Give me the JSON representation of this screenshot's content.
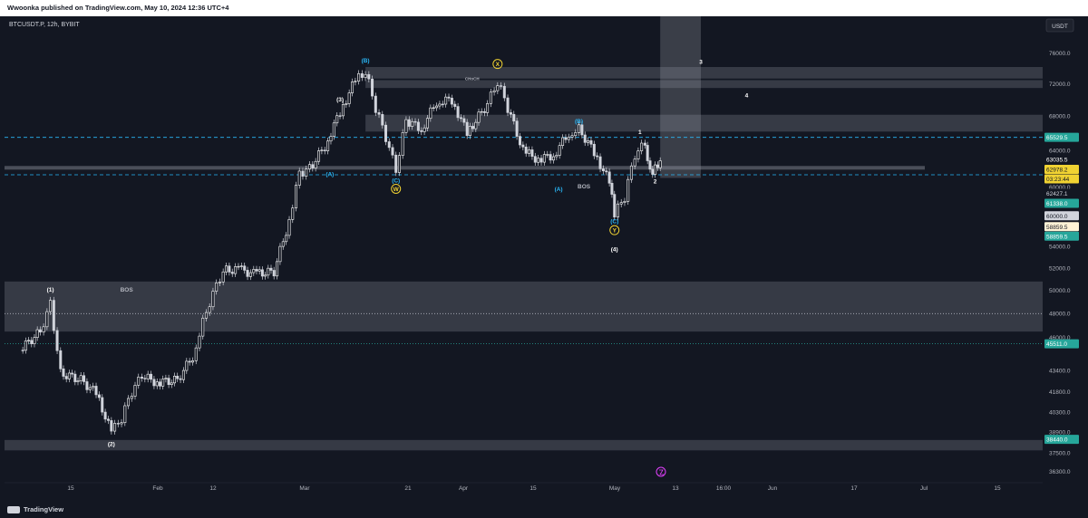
{
  "header": {
    "publisher_line": "Wwoonka published on TradingView.com, May 10, 2024 12:36 UTC+4"
  },
  "symbol_line": "BTCUSDT.P, 12h, BYBIT",
  "footer": {
    "brand": "TradingView"
  },
  "chart_data": {
    "type": "candlestick",
    "currency": "USDT",
    "price_axis": {
      "ticks": [
        "76000.0",
        "72000.0",
        "68000.0",
        "64000.0",
        "60000.0",
        "56000.0",
        "54000.0",
        "52000.0",
        "50000.0",
        "48000.0",
        "46000.0",
        "43400.0",
        "41800.0",
        "40300.0",
        "38900.0",
        "37500.0",
        "36300.0"
      ],
      "log_scale": true
    },
    "price_labels": [
      {
        "text": "65529.5",
        "price": 65529.5,
        "bg": "#26a69a",
        "fg": "#ffffff"
      },
      {
        "text": "63035.5",
        "price": 63035.5,
        "bg": "#131722",
        "fg": "#ffffff"
      },
      {
        "text": "62978.2",
        "price": 62978.2,
        "bg": "#f0d232",
        "fg": "#131722"
      },
      {
        "text": "03:23:44",
        "price": 62978.2,
        "bg": "#f0d232",
        "fg": "#131722"
      },
      {
        "text": "62427.1",
        "price": 62427.1,
        "bg": "#131722",
        "fg": "#d1d4dc"
      },
      {
        "text": "61338.0",
        "price": 61338.0,
        "bg": "#26a69a",
        "fg": "#ffffff"
      },
      {
        "text": "60000.0",
        "price": 60000.0,
        "bg": "#d1d4dc",
        "fg": "#131722"
      },
      {
        "text": "58859.5",
        "price": 58859.5,
        "bg": "#fff3d6",
        "fg": "#131722"
      },
      {
        "text": "58859.5",
        "price": 58859.5,
        "bg": "#26a69a",
        "fg": "#ffffff"
      },
      {
        "text": "45511.0",
        "price": 45511.0,
        "bg": "#26a69a",
        "fg": "#ffffff"
      },
      {
        "text": "38440.0",
        "price": 38440.0,
        "bg": "#26a69a",
        "fg": "#ffffff"
      }
    ],
    "time_axis": {
      "ticks": [
        "15",
        "Feb",
        "12",
        "Mar",
        "21",
        "Apr",
        "15",
        "May",
        "13",
        "16:00",
        "Jun",
        "17",
        "Jul",
        "15"
      ]
    },
    "close_path": [
      [
        "Jan 05",
        45000
      ],
      [
        "Jan 09",
        46500
      ],
      [
        "Jan 11",
        48800
      ],
      [
        "Jan 13",
        43200
      ],
      [
        "Jan 17",
        42700
      ],
      [
        "Jan 20",
        41700
      ],
      [
        "Jan 23",
        38900
      ],
      [
        "Jan 25",
        39900
      ],
      [
        "Jan 27",
        41800
      ],
      [
        "Jan 29",
        43000
      ],
      [
        "Feb 01",
        42500
      ],
      [
        "Feb 05",
        42700
      ],
      [
        "Feb 08",
        44500
      ],
      [
        "Feb 10",
        47300
      ],
      [
        "Feb 12",
        49800
      ],
      [
        "Feb 14",
        51800
      ],
      [
        "Feb 17",
        51900
      ],
      [
        "Feb 20",
        51500
      ],
      [
        "Feb 24",
        51700
      ],
      [
        "Feb 27",
        56500
      ],
      [
        "Feb 29",
        61500
      ],
      [
        "Mar 02",
        62000
      ],
      [
        "Mar 05",
        64500
      ],
      [
        "Mar 08",
        68500
      ],
      [
        "Mar 11",
        72500
      ],
      [
        "Mar 13",
        73600
      ],
      [
        "Mar 15",
        69000
      ],
      [
        "Mar 17",
        65500
      ],
      [
        "Mar 19",
        61800
      ],
      [
        "Mar 21",
        67500
      ],
      [
        "Mar 24",
        66500
      ],
      [
        "Mar 27",
        69800
      ],
      [
        "Mar 30",
        70000
      ],
      [
        "Apr 02",
        66000
      ],
      [
        "Apr 06",
        69500
      ],
      [
        "Apr 08",
        72300
      ],
      [
        "Apr 10",
        69000
      ],
      [
        "Apr 13",
        64000
      ],
      [
        "Apr 16",
        63000
      ],
      [
        "Apr 19",
        63500
      ],
      [
        "Apr 22",
        66000
      ],
      [
        "Apr 24",
        66500
      ],
      [
        "Apr 27",
        63800
      ],
      [
        "Apr 30",
        60500
      ],
      [
        "May 01",
        57200
      ],
      [
        "May 03",
        59000
      ],
      [
        "May 05",
        63500
      ],
      [
        "May 07",
        64800
      ],
      [
        "May 08",
        61500
      ],
      [
        "May 09",
        62200
      ],
      [
        "May 10",
        62978.2
      ]
    ],
    "annotations": [
      {
        "text": "(1)",
        "time": "Jan 11",
        "price": 49900,
        "color": "#ffffff"
      },
      {
        "text": "BOS",
        "time": "Jan 26",
        "price": 49900,
        "color": "#b2b5be"
      },
      {
        "text": "(2)",
        "time": "Jan 23",
        "price": 38000,
        "color": "#ffffff"
      },
      {
        "text": "(3)",
        "time": "Mar 08",
        "price": 69800,
        "color": "#ffffff"
      },
      {
        "text": "(B)",
        "time": "Mar 13",
        "price": 74800,
        "color": "#29b6f6"
      },
      {
        "text": "(A)",
        "time": "Mar 06",
        "price": 61200,
        "color": "#29b6f6"
      },
      {
        "text": "(C)",
        "time": "Mar 19",
        "price": 60500,
        "color": "#29b6f6"
      },
      {
        "text": "W",
        "time": "Mar 19",
        "price": 59600,
        "color": "#f0d232",
        "circle": true
      },
      {
        "text": "X",
        "time": "Apr 08",
        "price": 74300,
        "color": "#f0d232",
        "circle": true
      },
      {
        "text": "CHoCH",
        "time": "Apr 03",
        "price": 72500,
        "color": "#b2b5be"
      },
      {
        "text": "(B)",
        "time": "Apr 24",
        "price": 67200,
        "color": "#29b6f6"
      },
      {
        "text": "(A)",
        "time": "Apr 20",
        "price": 59600,
        "color": "#29b6f6"
      },
      {
        "text": "BOS",
        "time": "Apr 25",
        "price": 59900,
        "color": "#b2b5be"
      },
      {
        "text": "(C)",
        "time": "May 01",
        "price": 56300,
        "color": "#29b6f6"
      },
      {
        "text": "Y",
        "time": "May 01",
        "price": 55400,
        "color": "#f0d232",
        "circle": true
      },
      {
        "text": "(4)",
        "time": "May 01",
        "price": 53600,
        "color": "#ffffff"
      },
      {
        "text": "1",
        "time": "May 06",
        "price": 65900,
        "color": "#ffffff"
      },
      {
        "text": "2",
        "time": "May 09",
        "price": 60400,
        "color": "#ffffff"
      },
      {
        "text": "3",
        "time": "May 18",
        "price": 74600,
        "color": "#ffffff"
      },
      {
        "text": "4",
        "time": "May 27",
        "price": 70300,
        "color": "#ffffff"
      }
    ],
    "zones": [
      {
        "name": "zone-73000",
        "from": 72700,
        "to": 74200
      },
      {
        "name": "zone-71500",
        "from": 71500,
        "to": 72500
      },
      {
        "name": "zone-67000",
        "from": 66200,
        "to": 68200
      },
      {
        "name": "zone-62000",
        "from": 61900,
        "to": 62300
      },
      {
        "name": "zone-48000",
        "from": 46500,
        "to": 50800
      },
      {
        "name": "zone-38000",
        "from": 37700,
        "to": 38400
      }
    ],
    "horizontal_lines": [
      {
        "price": 65529.5,
        "color": "#29b6f6",
        "style": "dashed"
      },
      {
        "price": 61338.0,
        "color": "#29b6f6",
        "style": "dashed"
      },
      {
        "price": 45511.0,
        "color": "#26a69a",
        "style": "dotted"
      },
      {
        "price": 48000,
        "color": "#b2b5be",
        "style": "dotted"
      }
    ],
    "projection_box": {
      "time_from": "May 10",
      "time_to": "May 18",
      "price_from": 61000,
      "price_to": 100000
    },
    "grid": false
  }
}
